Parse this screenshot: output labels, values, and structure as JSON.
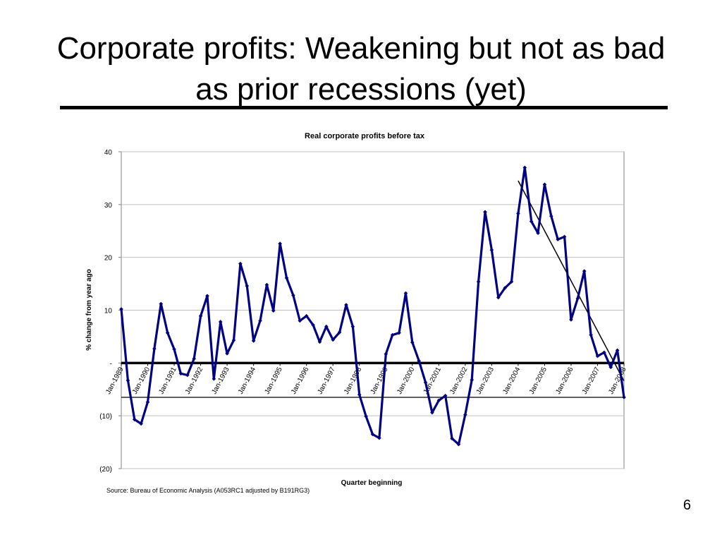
{
  "slide": {
    "title_line1": "Corporate profits: Weakening but not as bad",
    "title_line2": "as prior recessions (yet)",
    "page_number": "6",
    "source": "Source: Bureau of Economic Analysis (A053RC1 adjusted by B191RG3)"
  },
  "chart_data": {
    "type": "line",
    "title": "Real corporate profits before tax",
    "xlabel": "Quarter beginning",
    "ylabel": "% change from year ago",
    "ylim": [
      -20,
      40
    ],
    "yticks": [
      40,
      30,
      20,
      10,
      0,
      -10,
      -20
    ],
    "ytick_labels": [
      "40",
      "30",
      "20",
      "10",
      "-",
      "(10)",
      "(20)"
    ],
    "x_tick_labels": [
      "Jan-1989",
      "Jan-1990",
      "Jan-1991",
      "Jan-1992",
      "Jan-1993",
      "Jan-1994",
      "Jan-1995",
      "Jan-1996",
      "Jan-1997",
      "Jan-1998",
      "Jan-1999",
      "Jan-2000",
      "Jan-2001",
      "Jan-2002",
      "Jan-2003",
      "Jan-2004",
      "Jan-2005",
      "Jan-2006",
      "Jan-2007",
      "Jan-2008"
    ],
    "x_start": "Jan-1989",
    "frequency": "quarterly",
    "grid": true,
    "series": [
      {
        "color": "#000080",
        "values": [
          10.2,
          -3.3,
          -10.7,
          -11.5,
          -7.4,
          2.7,
          11.2,
          5.7,
          2.6,
          -2.0,
          -2.3,
          0.8,
          8.9,
          12.7,
          -3.0,
          7.8,
          1.8,
          4.3,
          18.8,
          14.6,
          4.2,
          8.0,
          14.8,
          9.9,
          22.6,
          16.1,
          12.8,
          8.0,
          8.9,
          7.2,
          4.0,
          6.9,
          4.4,
          5.8,
          11.0,
          6.9,
          -6.0,
          -10.1,
          -13.5,
          -14.2,
          1.7,
          5.3,
          5.7,
          13.2,
          3.9,
          0.4,
          -3.7,
          -9.4,
          -7.1,
          -6.2,
          -14.3,
          -15.4,
          -9.8,
          -3.2,
          15.4,
          28.6,
          21.4,
          12.4,
          14.2,
          15.4,
          28.3,
          37.0,
          26.8,
          24.6,
          33.8,
          27.8,
          23.4,
          23.9,
          8.2,
          12.2,
          17.4,
          5.3,
          1.3,
          2.0,
          -0.8,
          2.4,
          -6.5
        ]
      }
    ],
    "annotations": [
      {
        "type": "trendline",
        "from_index": 60,
        "from_value": 34.5,
        "to_index": 76,
        "to_value": -3.4,
        "color": "#000000"
      },
      {
        "type": "reference_line",
        "value": -6.5,
        "color": "#000000"
      },
      {
        "type": "zero_line",
        "value": 0,
        "color": "#000000"
      }
    ]
  }
}
